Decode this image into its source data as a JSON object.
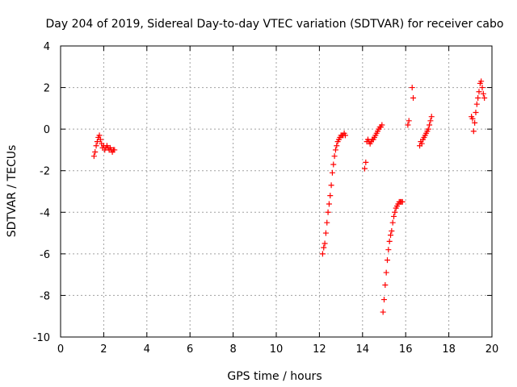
{
  "chart_data": {
    "type": "scatter",
    "title": "Day 204 of 2019, Sidereal Day-to-day VTEC variation (SDTVAR) for receiver cabo",
    "xlabel": "GPS time / hours",
    "ylabel": "SDTVAR / TECUs",
    "xlim": [
      0,
      20
    ],
    "ylim": [
      -10,
      4
    ],
    "xticks": [
      0,
      2,
      4,
      6,
      8,
      10,
      12,
      14,
      16,
      18,
      20
    ],
    "yticks": [
      -10,
      -8,
      -6,
      -4,
      -2,
      0,
      2,
      4
    ],
    "xtick_labels": [
      "0",
      "2",
      "4",
      "6",
      "8",
      "10",
      "12",
      "14",
      "16",
      "18",
      "20"
    ],
    "ytick_labels": [
      "-10",
      "-8",
      "-6",
      "-4",
      "-2",
      "0",
      "2",
      "4"
    ],
    "grid": true,
    "marker": "+",
    "series": [
      {
        "name": "SDTVAR",
        "color": "#ff0000",
        "x": [
          1.55,
          1.6,
          1.65,
          1.7,
          1.75,
          1.8,
          1.85,
          1.9,
          1.95,
          2.0,
          2.05,
          2.1,
          2.15,
          2.2,
          2.25,
          2.3,
          2.35,
          2.4,
          2.45,
          2.5,
          12.15,
          12.2,
          12.25,
          12.3,
          12.35,
          12.4,
          12.45,
          12.5,
          12.55,
          12.6,
          12.65,
          12.7,
          12.75,
          12.8,
          12.85,
          12.9,
          12.95,
          13.0,
          13.05,
          13.1,
          13.15,
          13.2,
          14.1,
          14.15,
          14.2,
          14.25,
          14.3,
          14.35,
          14.4,
          14.45,
          14.5,
          14.55,
          14.6,
          14.65,
          14.7,
          14.75,
          14.8,
          14.85,
          14.9,
          14.95,
          15.0,
          15.05,
          15.1,
          15.15,
          15.2,
          15.25,
          15.3,
          15.35,
          15.4,
          15.45,
          15.5,
          15.55,
          15.6,
          15.65,
          15.7,
          15.75,
          15.8,
          15.85,
          16.1,
          16.15,
          16.3,
          16.35,
          16.65,
          16.7,
          16.75,
          16.8,
          16.85,
          16.9,
          16.95,
          17.0,
          17.05,
          17.1,
          17.15,
          17.2,
          19.05,
          19.1,
          19.15,
          19.2,
          19.25,
          19.3,
          19.35,
          19.4,
          19.45,
          19.5,
          19.55,
          19.6,
          19.65
        ],
        "y": [
          -1.3,
          -1.1,
          -0.8,
          -0.6,
          -0.4,
          -0.3,
          -0.5,
          -0.7,
          -0.9,
          -0.8,
          -1.0,
          -0.9,
          -0.8,
          -0.9,
          -1.0,
          -0.9,
          -1.0,
          -1.1,
          -1.0,
          -1.0,
          -6.0,
          -5.7,
          -5.5,
          -5.0,
          -4.5,
          -4.0,
          -3.6,
          -3.2,
          -2.7,
          -2.1,
          -1.7,
          -1.3,
          -1.0,
          -0.8,
          -0.6,
          -0.5,
          -0.4,
          -0.3,
          -0.3,
          -0.3,
          -0.2,
          -0.3,
          -1.9,
          -1.6,
          -0.6,
          -0.5,
          -0.6,
          -0.7,
          -0.6,
          -0.5,
          -0.5,
          -0.4,
          -0.3,
          -0.2,
          -0.1,
          0.0,
          0.1,
          0.1,
          0.2,
          -8.8,
          -8.2,
          -7.5,
          -6.9,
          -6.3,
          -5.8,
          -5.4,
          -5.1,
          -4.9,
          -4.5,
          -4.2,
          -4.0,
          -3.8,
          -3.7,
          -3.6,
          -3.5,
          -3.5,
          -3.5,
          -3.5,
          0.2,
          0.4,
          2.0,
          1.5,
          -0.8,
          -0.6,
          -0.7,
          -0.5,
          -0.4,
          -0.3,
          -0.2,
          -0.1,
          0.0,
          0.2,
          0.4,
          0.6,
          0.6,
          0.5,
          -0.1,
          0.3,
          0.8,
          1.2,
          1.5,
          1.8,
          2.2,
          2.3,
          2.0,
          1.7,
          1.5
        ]
      }
    ]
  }
}
